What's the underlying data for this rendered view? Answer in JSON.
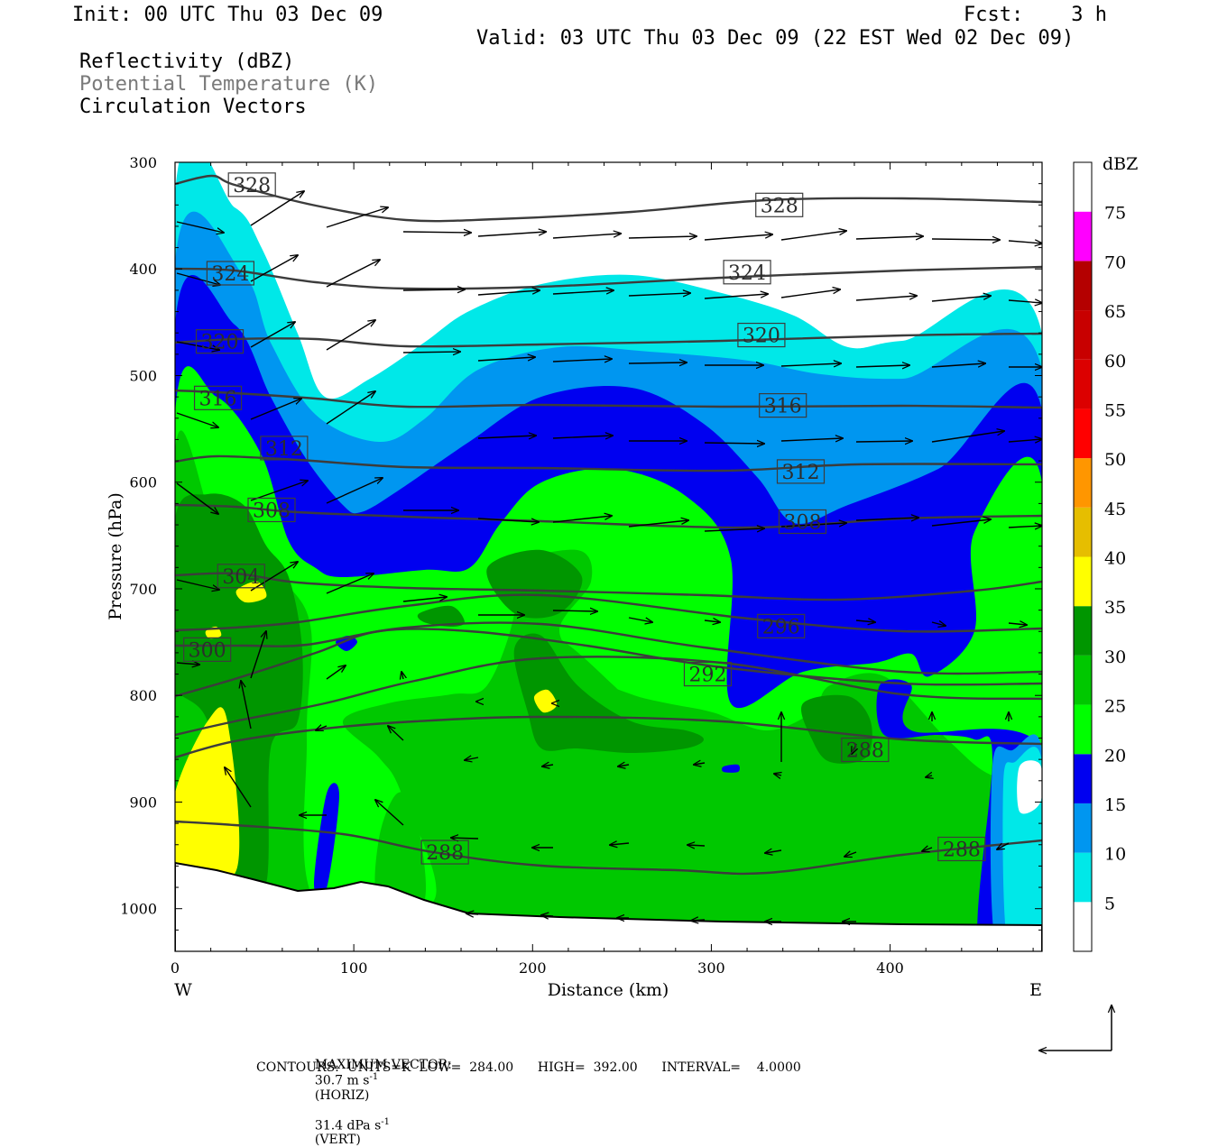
{
  "header": {
    "init": "Init: 00 UTC Thu 03 Dec 09",
    "fcst": "Fcst:    3 h",
    "valid": "Valid: 03 UTC Thu 03 Dec 09 (22 EST Wed 02 Dec 09)",
    "field1": "Reflectivity (dBZ)",
    "field2": "Potential Temperature (K)",
    "field3": "Circulation Vectors"
  },
  "footer": {
    "max_vector_label": "MAXIMUM VECTOR:",
    "max_horiz": "30.7 m s",
    "horiz_sup": "-1",
    "horiz_tag": "(HORIZ)",
    "max_vert": "31.4 dPa s",
    "vert_sup": "-1",
    "vert_tag": "(VERT)",
    "contours": "CONTOURS:  UNITS=K  LOW=  284.00      HIGH=  392.00      INTERVAL=    4.0000"
  },
  "colors": {
    "c5": "#00e8e8",
    "c10": "#0096f0",
    "c15": "#0000f0",
    "c20": "#00ff00",
    "c25": "#00c800",
    "c30": "#009600",
    "c35": "#ffff00",
    "c40": "#e6be00",
    "c45": "#ff9600",
    "c50": "#ff0000",
    "c55": "#dc0000",
    "c60": "#c80000",
    "c65": "#b40000",
    "c70": "#ff00ff",
    "c75": "#9955c8",
    "theta": "#3c3c3c"
  },
  "chart_data": {
    "type": "heatmap",
    "description_fields": [
      "Reflectivity (dBZ)",
      "Potential Temperature (K)",
      "Circulation Vectors"
    ],
    "xlabel": "Distance (km)",
    "ylabel": "Pressure (hPa)",
    "xlim": [
      0,
      485
    ],
    "ylim": [
      1040,
      300
    ],
    "x_ticks": [
      0,
      100,
      200,
      300,
      400
    ],
    "y_ticks": [
      300,
      400,
      500,
      600,
      700,
      800,
      900,
      1000
    ],
    "x_end_labels": [
      "W",
      "E"
    ],
    "colorbar": {
      "units": "dBZ",
      "levels": [
        5,
        10,
        15,
        20,
        25,
        30,
        35,
        40,
        45,
        50,
        55,
        60,
        65,
        70,
        75
      ]
    },
    "theta_labels": [
      {
        "value": "328",
        "x": 43,
        "p": 321
      },
      {
        "value": "328",
        "x": 338,
        "p": 340
      },
      {
        "value": "324",
        "x": 31,
        "p": 404
      },
      {
        "value": "324",
        "x": 320,
        "p": 403
      },
      {
        "value": "320",
        "x": 25,
        "p": 468
      },
      {
        "value": "320",
        "x": 328,
        "p": 462
      },
      {
        "value": "316",
        "x": 24,
        "p": 521
      },
      {
        "value": "316",
        "x": 340,
        "p": 528
      },
      {
        "value": "312",
        "x": 61,
        "p": 568
      },
      {
        "value": "312",
        "x": 350,
        "p": 590
      },
      {
        "value": "308",
        "x": 54,
        "p": 626
      },
      {
        "value": "308",
        "x": 351,
        "p": 637
      },
      {
        "value": "304",
        "x": 37,
        "p": 688
      },
      {
        "value": "296",
        "x": 339,
        "p": 735
      },
      {
        "value": "300",
        "x": 18,
        "p": 757
      },
      {
        "value": "292",
        "x": 298,
        "p": 780
      },
      {
        "value": "288",
        "x": 386,
        "p": 851
      },
      {
        "value": "288",
        "x": 151,
        "p": 947
      },
      {
        "value": "288",
        "x": 440,
        "p": 944
      }
    ]
  }
}
